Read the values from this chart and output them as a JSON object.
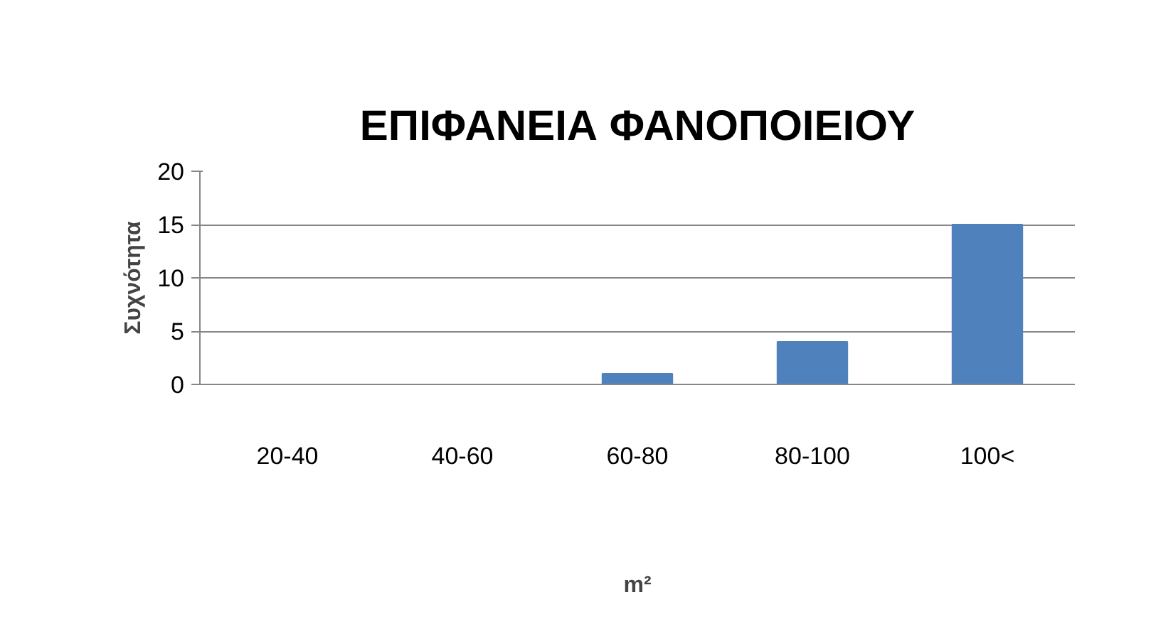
{
  "chart_data": {
    "type": "bar",
    "title": "ΕΠΙΦΑΝΕΙΑ ΦΑΝΟΠΟΙΕΙΟΥ",
    "xlabel": "m²",
    "ylabel": "Συχνότητα",
    "categories": [
      "20-40",
      "40-60",
      "60-80",
      "80-100",
      "100<"
    ],
    "values": [
      0,
      0,
      1,
      4,
      15
    ],
    "color": "#4f81bd",
    "ylim": [
      0,
      20
    ],
    "yticks": [
      0,
      5,
      10,
      15,
      20
    ],
    "grid": "y"
  }
}
